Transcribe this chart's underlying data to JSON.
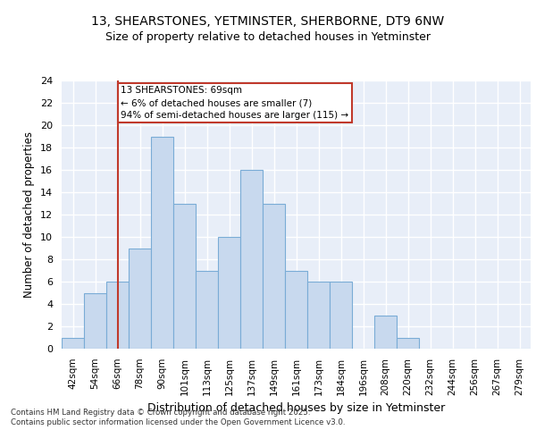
{
  "title_line1": "13, SHEARSTONES, YETMINSTER, SHERBORNE, DT9 6NW",
  "title_line2": "Size of property relative to detached houses in Yetminster",
  "xlabel": "Distribution of detached houses by size in Yetminster",
  "ylabel": "Number of detached properties",
  "bin_labels": [
    "42sqm",
    "54sqm",
    "66sqm",
    "78sqm",
    "90sqm",
    "101sqm",
    "113sqm",
    "125sqm",
    "137sqm",
    "149sqm",
    "161sqm",
    "173sqm",
    "184sqm",
    "196sqm",
    "208sqm",
    "220sqm",
    "232sqm",
    "244sqm",
    "256sqm",
    "267sqm",
    "279sqm"
  ],
  "counts": [
    1,
    5,
    6,
    9,
    19,
    13,
    7,
    10,
    16,
    13,
    7,
    6,
    6,
    0,
    3,
    1,
    0,
    0,
    0,
    0,
    0
  ],
  "bar_color": "#c8d9ee",
  "bar_edge_color": "#7aacd6",
  "background_color": "#e8eef8",
  "grid_color": "#ffffff",
  "vline_color": "#c0392b",
  "vline_pos": 2.0,
  "annotation_text": "13 SHEARSTONES: 69sqm\n← 6% of detached houses are smaller (7)\n94% of semi-detached houses are larger (115) →",
  "annotation_box_color": "#ffffff",
  "annotation_box_edge": "#c0392b",
  "footer_text": "Contains HM Land Registry data © Crown copyright and database right 2025.\nContains public sector information licensed under the Open Government Licence v3.0.",
  "ylim": [
    0,
    24
  ],
  "yticks": [
    0,
    2,
    4,
    6,
    8,
    10,
    12,
    14,
    16,
    18,
    20,
    22,
    24
  ]
}
